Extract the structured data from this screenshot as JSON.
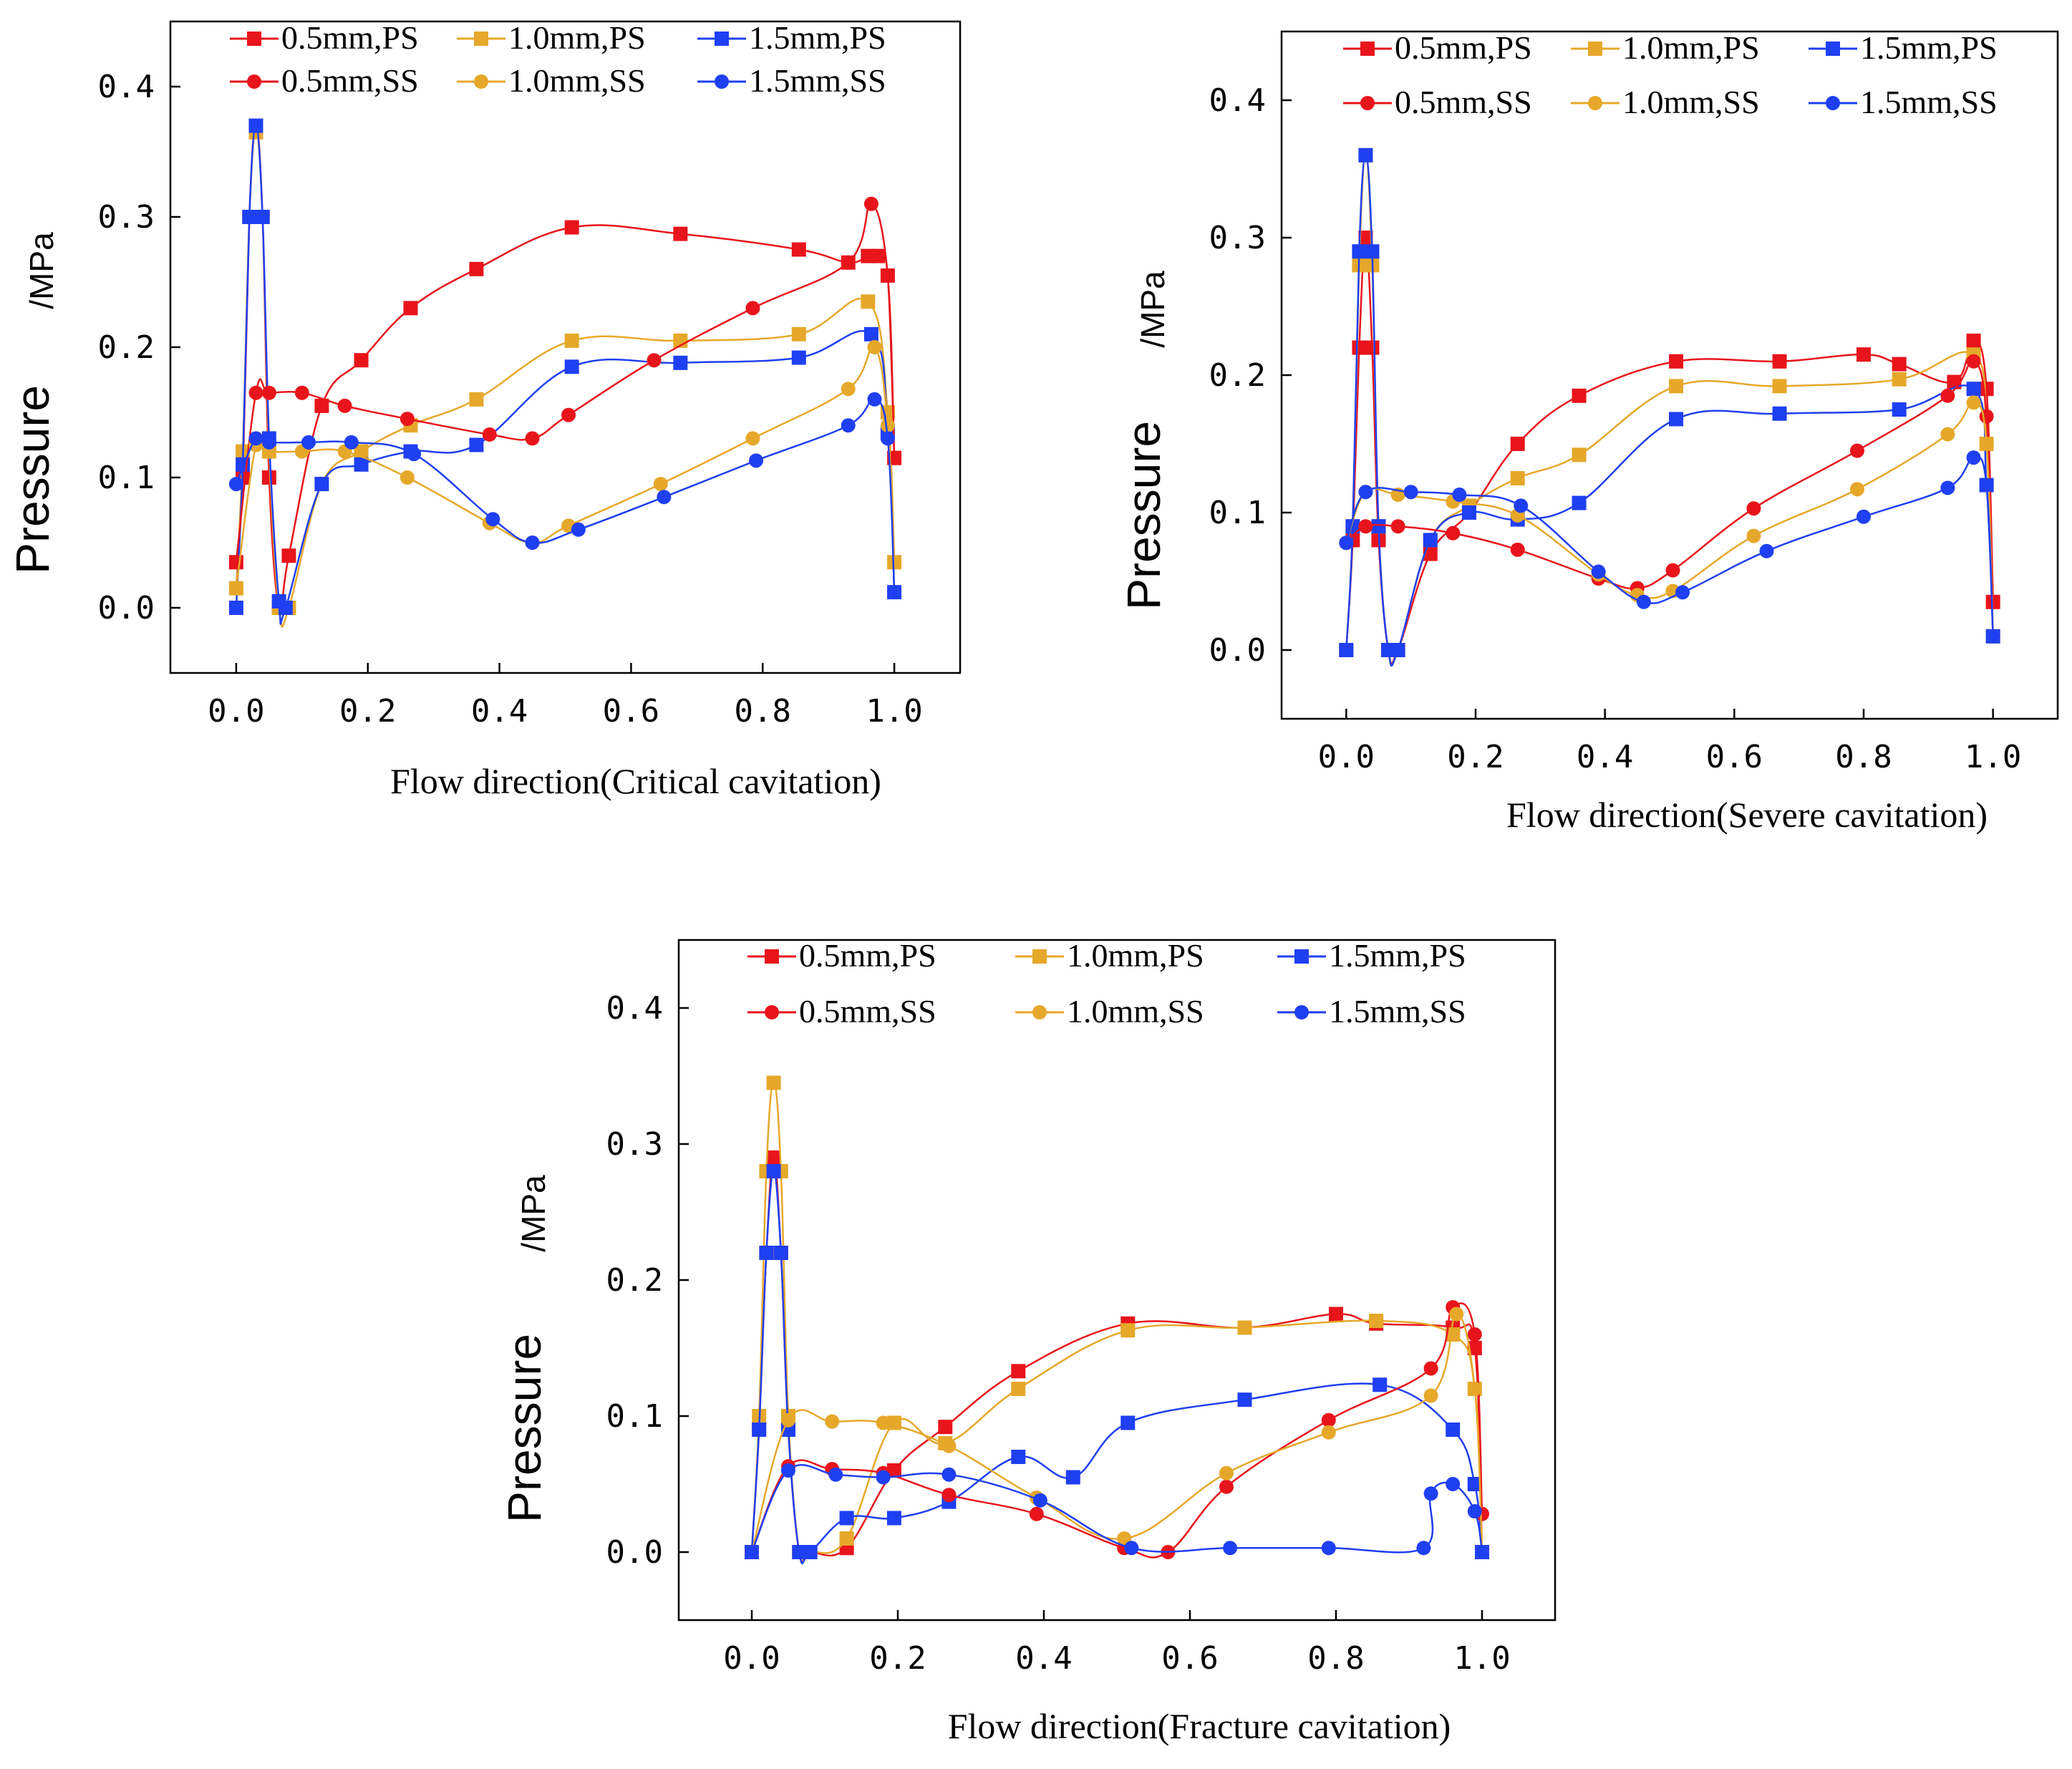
{
  "figure": {
    "colors": {
      "0.5mm": "#e8141c",
      "1.0mm": "#e6a82a",
      "1.5mm": "#1f3ff2"
    },
    "legend_entries": [
      "0.5mm,PS",
      "1.0mm,PS",
      "1.5mm,PS",
      "0.5mm,SS",
      "1.0mm,SS",
      "1.5mm,SS"
    ],
    "y_axis_label": "Pressure",
    "y_axis_unit": "/MPa"
  },
  "chart_data": [
    {
      "type": "line",
      "title": "",
      "xlabel": "Flow direction(Critical cavitation)",
      "ylabel": "Pressure /MPa",
      "xlim": [
        -0.1,
        1.1
      ],
      "ylim": [
        -0.05,
        0.45
      ],
      "x_ticks": [
        "0.0",
        "0.2",
        "0.4",
        "0.6",
        "0.8",
        "1.0"
      ],
      "y_ticks": [
        "0.0",
        "0.1",
        "0.2",
        "0.3",
        "0.4"
      ],
      "legend": "top",
      "series": [
        {
          "name": "0.5mm,PS",
          "marker": "square",
          "color": "#e8141c",
          "x": [
            0.0,
            0.01,
            0.02,
            0.03,
            0.04,
            0.05,
            0.065,
            0.08,
            0.13,
            0.19,
            0.265,
            0.365,
            0.51,
            0.675,
            0.855,
            0.93,
            0.96,
            0.975,
            0.99,
            1.0
          ],
          "y": [
            0.035,
            0.1,
            0.3,
            0.37,
            0.3,
            0.1,
            0.0,
            0.04,
            0.155,
            0.19,
            0.23,
            0.26,
            0.292,
            0.287,
            0.275,
            0.265,
            0.27,
            0.27,
            0.255,
            0.115
          ]
        },
        {
          "name": "1.0mm,PS",
          "marker": "square",
          "color": "#e6a82a",
          "x": [
            0.0,
            0.01,
            0.02,
            0.03,
            0.04,
            0.05,
            0.065,
            0.08,
            0.13,
            0.19,
            0.265,
            0.365,
            0.51,
            0.675,
            0.855,
            0.96,
            0.99,
            1.0
          ],
          "y": [
            0.015,
            0.12,
            0.3,
            0.365,
            0.3,
            0.12,
            0.0,
            0.0,
            0.095,
            0.12,
            0.14,
            0.16,
            0.205,
            0.205,
            0.21,
            0.235,
            0.15,
            0.035
          ]
        },
        {
          "name": "1.5mm,PS",
          "marker": "square",
          "color": "#1f3ff2",
          "x": [
            0.0,
            0.01,
            0.02,
            0.03,
            0.04,
            0.05,
            0.065,
            0.075,
            0.13,
            0.19,
            0.265,
            0.365,
            0.51,
            0.675,
            0.855,
            0.965,
            0.99,
            1.0
          ],
          "y": [
            0.0,
            0.11,
            0.3,
            0.37,
            0.3,
            0.13,
            0.005,
            0.0,
            0.095,
            0.11,
            0.12,
            0.125,
            0.185,
            0.188,
            0.192,
            0.21,
            0.135,
            0.012
          ]
        },
        {
          "name": "0.5mm,SS",
          "marker": "circle",
          "color": "#e8141c",
          "x": [
            0.0,
            0.03,
            0.05,
            0.1,
            0.165,
            0.26,
            0.385,
            0.45,
            0.505,
            0.635,
            0.785,
            0.93,
            0.965,
            0.99,
            1.0
          ],
          "y": [
            0.035,
            0.165,
            0.165,
            0.165,
            0.155,
            0.145,
            0.133,
            0.13,
            0.148,
            0.19,
            0.23,
            0.265,
            0.31,
            0.255,
            0.115
          ]
        },
        {
          "name": "1.0mm,SS",
          "marker": "circle",
          "color": "#e6a82a",
          "x": [
            0.0,
            0.03,
            0.05,
            0.1,
            0.165,
            0.26,
            0.385,
            0.45,
            0.505,
            0.645,
            0.785,
            0.93,
            0.97,
            0.99,
            1.0
          ],
          "y": [
            0.015,
            0.125,
            0.12,
            0.12,
            0.12,
            0.1,
            0.065,
            0.05,
            0.063,
            0.095,
            0.13,
            0.168,
            0.2,
            0.14,
            0.035
          ]
        },
        {
          "name": "1.5mm,SS",
          "marker": "circle",
          "color": "#1f3ff2",
          "x": [
            0.0,
            0.03,
            0.05,
            0.11,
            0.175,
            0.27,
            0.39,
            0.45,
            0.52,
            0.65,
            0.79,
            0.93,
            0.97,
            0.99,
            1.0
          ],
          "y": [
            0.095,
            0.13,
            0.127,
            0.127,
            0.127,
            0.118,
            0.068,
            0.05,
            0.06,
            0.085,
            0.113,
            0.14,
            0.16,
            0.13,
            0.012
          ]
        }
      ]
    },
    {
      "type": "line",
      "title": "",
      "xlabel": "Flow direction(Severe cavitation)",
      "ylabel": "Pressure /MPa",
      "xlim": [
        -0.1,
        1.1
      ],
      "ylim": [
        -0.05,
        0.45
      ],
      "x_ticks": [
        "0.0",
        "0.2",
        "0.4",
        "0.6",
        "0.8",
        "1.0"
      ],
      "y_ticks": [
        "0.0",
        "0.1",
        "0.2",
        "0.3",
        "0.4"
      ],
      "legend": "top",
      "series": [
        {
          "name": "0.5mm,PS",
          "marker": "square",
          "color": "#e8141c",
          "x": [
            0.0,
            0.01,
            0.02,
            0.03,
            0.04,
            0.05,
            0.065,
            0.08,
            0.13,
            0.19,
            0.265,
            0.36,
            0.51,
            0.67,
            0.8,
            0.855,
            0.94,
            0.97,
            0.99,
            1.0
          ],
          "y": [
            0.0,
            0.08,
            0.22,
            0.3,
            0.22,
            0.08,
            0.0,
            0.0,
            0.07,
            0.1,
            0.15,
            0.185,
            0.21,
            0.21,
            0.215,
            0.208,
            0.195,
            0.225,
            0.19,
            0.035
          ]
        },
        {
          "name": "1.0mm,PS",
          "marker": "square",
          "color": "#e6a82a",
          "x": [
            0.0,
            0.01,
            0.02,
            0.03,
            0.04,
            0.05,
            0.065,
            0.08,
            0.13,
            0.19,
            0.265,
            0.36,
            0.51,
            0.67,
            0.855,
            0.97,
            0.99,
            1.0
          ],
          "y": [
            0.0,
            0.09,
            0.28,
            0.36,
            0.28,
            0.09,
            0.0,
            0.0,
            0.08,
            0.105,
            0.125,
            0.142,
            0.192,
            0.192,
            0.197,
            0.215,
            0.15,
            0.01
          ]
        },
        {
          "name": "1.5mm,PS",
          "marker": "square",
          "color": "#1f3ff2",
          "x": [
            0.0,
            0.01,
            0.02,
            0.03,
            0.04,
            0.05,
            0.065,
            0.08,
            0.13,
            0.19,
            0.265,
            0.36,
            0.51,
            0.67,
            0.855,
            0.97,
            0.99,
            1.0
          ],
          "y": [
            0.0,
            0.09,
            0.29,
            0.36,
            0.29,
            0.09,
            0.0,
            0.0,
            0.08,
            0.1,
            0.095,
            0.107,
            0.168,
            0.172,
            0.175,
            0.19,
            0.12,
            0.01
          ]
        },
        {
          "name": "0.5mm,SS",
          "marker": "circle",
          "color": "#e8141c",
          "x": [
            0.0,
            0.03,
            0.08,
            0.165,
            0.265,
            0.39,
            0.45,
            0.505,
            0.63,
            0.79,
            0.93,
            0.97,
            0.99,
            1.0
          ],
          "y": [
            0.078,
            0.09,
            0.09,
            0.085,
            0.073,
            0.052,
            0.045,
            0.058,
            0.103,
            0.145,
            0.185,
            0.21,
            0.17,
            0.035
          ]
        },
        {
          "name": "1.0mm,SS",
          "marker": "circle",
          "color": "#e6a82a",
          "x": [
            0.0,
            0.03,
            0.08,
            0.165,
            0.265,
            0.39,
            0.45,
            0.505,
            0.63,
            0.79,
            0.93,
            0.97,
            0.99,
            1.0
          ],
          "y": [
            0.078,
            0.115,
            0.113,
            0.108,
            0.098,
            0.055,
            0.04,
            0.043,
            0.083,
            0.117,
            0.157,
            0.18,
            0.15,
            0.01
          ]
        },
        {
          "name": "1.5mm,SS",
          "marker": "circle",
          "color": "#1f3ff2",
          "x": [
            0.0,
            0.03,
            0.1,
            0.175,
            0.27,
            0.39,
            0.46,
            0.52,
            0.65,
            0.8,
            0.93,
            0.97,
            0.99,
            1.0
          ],
          "y": [
            0.078,
            0.115,
            0.115,
            0.113,
            0.105,
            0.057,
            0.035,
            0.042,
            0.072,
            0.097,
            0.118,
            0.14,
            0.12,
            0.01
          ]
        }
      ]
    },
    {
      "type": "line",
      "title": "",
      "xlabel": "Flow direction(Fracture cavitation)",
      "ylabel": "Pressure /MPa",
      "xlim": [
        -0.1,
        1.1
      ],
      "ylim": [
        -0.05,
        0.45
      ],
      "x_ticks": [
        "0.0",
        "0.2",
        "0.4",
        "0.6",
        "0.8",
        "1.0"
      ],
      "y_ticks": [
        "0.0",
        "0.1",
        "0.2",
        "0.3",
        "0.4"
      ],
      "legend": "top",
      "series": [
        {
          "name": "0.5mm,PS",
          "marker": "square",
          "color": "#e8141c",
          "x": [
            0.0,
            0.01,
            0.02,
            0.03,
            0.04,
            0.05,
            0.065,
            0.08,
            0.13,
            0.195,
            0.265,
            0.365,
            0.515,
            0.675,
            0.8,
            0.855,
            0.96,
            0.99,
            1.0
          ],
          "y": [
            0.0,
            0.09,
            0.22,
            0.29,
            0.22,
            0.09,
            0.0,
            0.0,
            0.003,
            0.06,
            0.092,
            0.133,
            0.168,
            0.165,
            0.175,
            0.168,
            0.165,
            0.15,
            0.0
          ]
        },
        {
          "name": "1.0mm,PS",
          "marker": "square",
          "color": "#e6a82a",
          "x": [
            0.0,
            0.01,
            0.02,
            0.03,
            0.04,
            0.05,
            0.065,
            0.08,
            0.13,
            0.195,
            0.265,
            0.365,
            0.515,
            0.675,
            0.855,
            0.96,
            0.99,
            1.0
          ],
          "y": [
            0.0,
            0.1,
            0.28,
            0.345,
            0.28,
            0.1,
            0.0,
            0.0,
            0.01,
            0.095,
            0.08,
            0.12,
            0.163,
            0.165,
            0.17,
            0.16,
            0.12,
            0.0
          ]
        },
        {
          "name": "1.5mm,PS",
          "marker": "square",
          "color": "#1f3ff2",
          "x": [
            0.0,
            0.01,
            0.02,
            0.03,
            0.04,
            0.05,
            0.065,
            0.08,
            0.13,
            0.195,
            0.27,
            0.365,
            0.44,
            0.515,
            0.675,
            0.86,
            0.96,
            0.99,
            1.0
          ],
          "y": [
            0.0,
            0.09,
            0.22,
            0.28,
            0.22,
            0.09,
            0.0,
            0.0,
            0.025,
            0.025,
            0.037,
            0.07,
            0.055,
            0.095,
            0.112,
            0.123,
            0.09,
            0.05,
            0.0
          ]
        },
        {
          "name": "0.5mm,SS",
          "marker": "circle",
          "color": "#e8141c",
          "x": [
            0.0,
            0.05,
            0.11,
            0.18,
            0.27,
            0.39,
            0.51,
            0.57,
            0.65,
            0.79,
            0.93,
            0.96,
            0.99,
            1.0
          ],
          "y": [
            0.0,
            0.063,
            0.061,
            0.058,
            0.042,
            0.028,
            0.003,
            0.0,
            0.048,
            0.097,
            0.135,
            0.18,
            0.16,
            0.028
          ]
        },
        {
          "name": "1.0mm,SS",
          "marker": "circle",
          "color": "#e6a82a",
          "x": [
            0.0,
            0.05,
            0.11,
            0.18,
            0.27,
            0.39,
            0.51,
            0.65,
            0.79,
            0.93,
            0.965,
            0.99,
            1.0
          ],
          "y": [
            0.0,
            0.097,
            0.096,
            0.095,
            0.078,
            0.04,
            0.01,
            0.058,
            0.088,
            0.115,
            0.175,
            0.12,
            0.0
          ]
        },
        {
          "name": "1.5mm,SS",
          "marker": "circle",
          "color": "#1f3ff2",
          "x": [
            0.0,
            0.05,
            0.115,
            0.18,
            0.27,
            0.395,
            0.52,
            0.655,
            0.79,
            0.92,
            0.93,
            0.96,
            0.99,
            1.0
          ],
          "y": [
            0.0,
            0.06,
            0.057,
            0.055,
            0.057,
            0.038,
            0.003,
            0.003,
            0.003,
            0.003,
            0.043,
            0.05,
            0.03,
            0.0
          ]
        }
      ]
    }
  ]
}
